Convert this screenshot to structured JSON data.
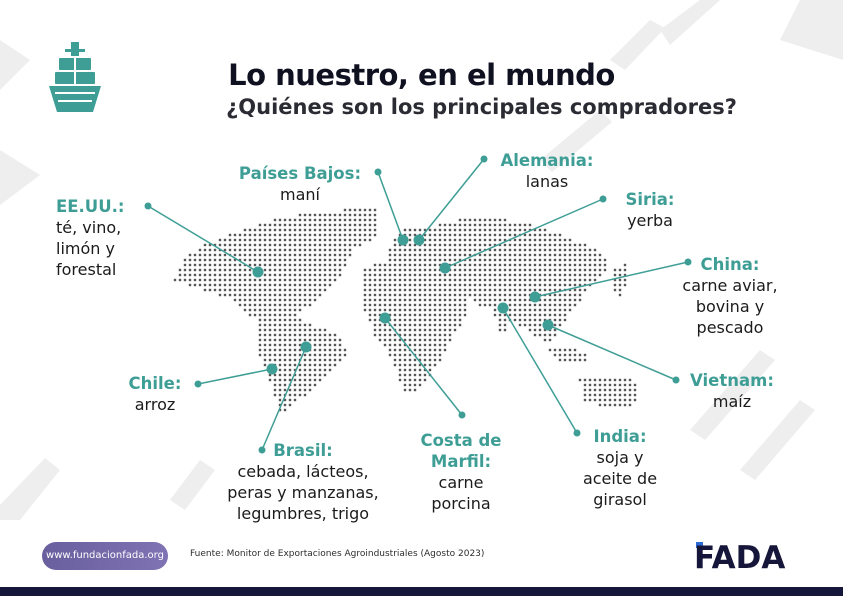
{
  "title": "Lo nuestro, en el mundo",
  "subtitle": "¿Quiénes son los principales compradores?",
  "colors": {
    "accent": "#3e9e96",
    "dots": "#555555",
    "title": "#0f1020",
    "pill": "#7468aa",
    "bar": "#16163a",
    "logo_dark": "#16163a",
    "logo_blue": "#2d6bd4"
  },
  "icons": {
    "top_left": "cargo-ship-icon",
    "logo": "fada-logo"
  },
  "labels": {
    "eeuu": {
      "country": "EE.UU.:",
      "product": "té, vino,\nlimón y\nforestal"
    },
    "paises_bajos": {
      "country": "Países Bajos:",
      "product": "maní"
    },
    "alemania": {
      "country": "Alemania:",
      "product": "lanas"
    },
    "siria": {
      "country": "Siria:",
      "product": "yerba"
    },
    "china": {
      "country": "China:",
      "product": "carne aviar,\nbovina y\npescado"
    },
    "vietnam": {
      "country": "Vietnam:",
      "product": "maíz"
    },
    "india": {
      "country": "India:",
      "product": "soja y\naceite de\ngirasol"
    },
    "costa_de_marfil": {
      "country": "Costa de\nMarfil:",
      "product": "carne\nporcina"
    },
    "brasil": {
      "country": "Brasil:",
      "product": "cebada, lácteos,\nperas y manzanas,\nlegumbres, trigo"
    },
    "chile": {
      "country": "Chile:",
      "product": "arroz"
    }
  },
  "footer": {
    "website": "www.fundacionfada.org",
    "source": "Fuente: Monitor de Exportaciones Agroindustriales (Agosto 2023)",
    "logo_text": "FADA"
  }
}
